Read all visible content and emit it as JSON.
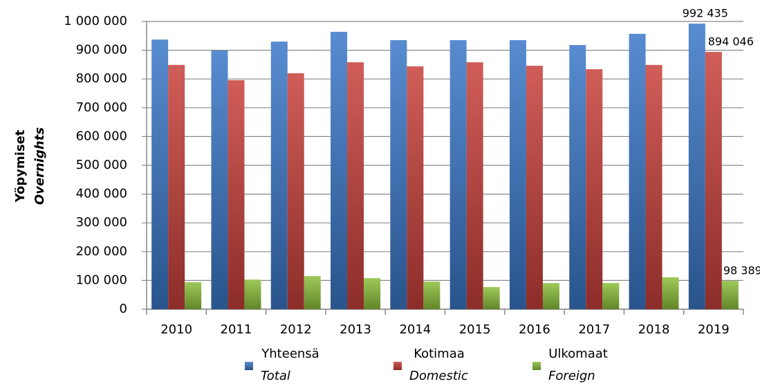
{
  "chart_data": {
    "type": "bar",
    "y_label": "Yöpymiset",
    "y_label_en": "Overnights",
    "categories": [
      "2010",
      "2011",
      "2012",
      "2013",
      "2014",
      "2015",
      "2016",
      "2017",
      "2018",
      "2019"
    ],
    "series": [
      {
        "name": "Yhteensä",
        "name_en": "Total",
        "color": "#3a78c8",
        "values": [
          937000,
          899000,
          930000,
          964000,
          935000,
          935000,
          935000,
          918000,
          957000,
          992435
        ],
        "value_labels": [
          null,
          null,
          null,
          null,
          null,
          null,
          null,
          null,
          null,
          "992 435"
        ]
      },
      {
        "name": "Kotimaa",
        "name_en": "Domestic",
        "color": "#c8403a",
        "values": [
          849000,
          796000,
          820000,
          858000,
          844000,
          858000,
          846000,
          834000,
          849000,
          894046
        ],
        "value_labels": [
          null,
          null,
          null,
          null,
          null,
          null,
          null,
          null,
          null,
          "894 046"
        ]
      },
      {
        "name": "Ulkomaat",
        "name_en": "Foreign",
        "color": "#8cbf3a",
        "values": [
          94000,
          103000,
          115000,
          108000,
          96000,
          77000,
          91000,
          91000,
          111000,
          98389
        ],
        "value_labels": [
          null,
          null,
          null,
          null,
          null,
          null,
          null,
          null,
          null,
          "98 389"
        ]
      }
    ],
    "ylim": [
      0,
      1000000
    ],
    "yticks": [
      0,
      {
        "value": 100000,
        "label": "100 000"
      },
      {
        "value": 200000,
        "label": "200 000"
      },
      {
        "value": 300000,
        "label": "300 000"
      },
      {
        "value": 400000,
        "label": "400 000"
      },
      {
        "value": 500000,
        "label": "500 000"
      },
      {
        "value": 600000,
        "label": "600 000"
      },
      {
        "value": 700000,
        "label": "700 000"
      },
      {
        "value": 800000,
        "label": "800 000"
      },
      {
        "value": 900000,
        "label": "900 000"
      },
      {
        "value": 1000000,
        "label": "1 000 000"
      }
    ],
    "grid": true,
    "legend": "bottom"
  }
}
